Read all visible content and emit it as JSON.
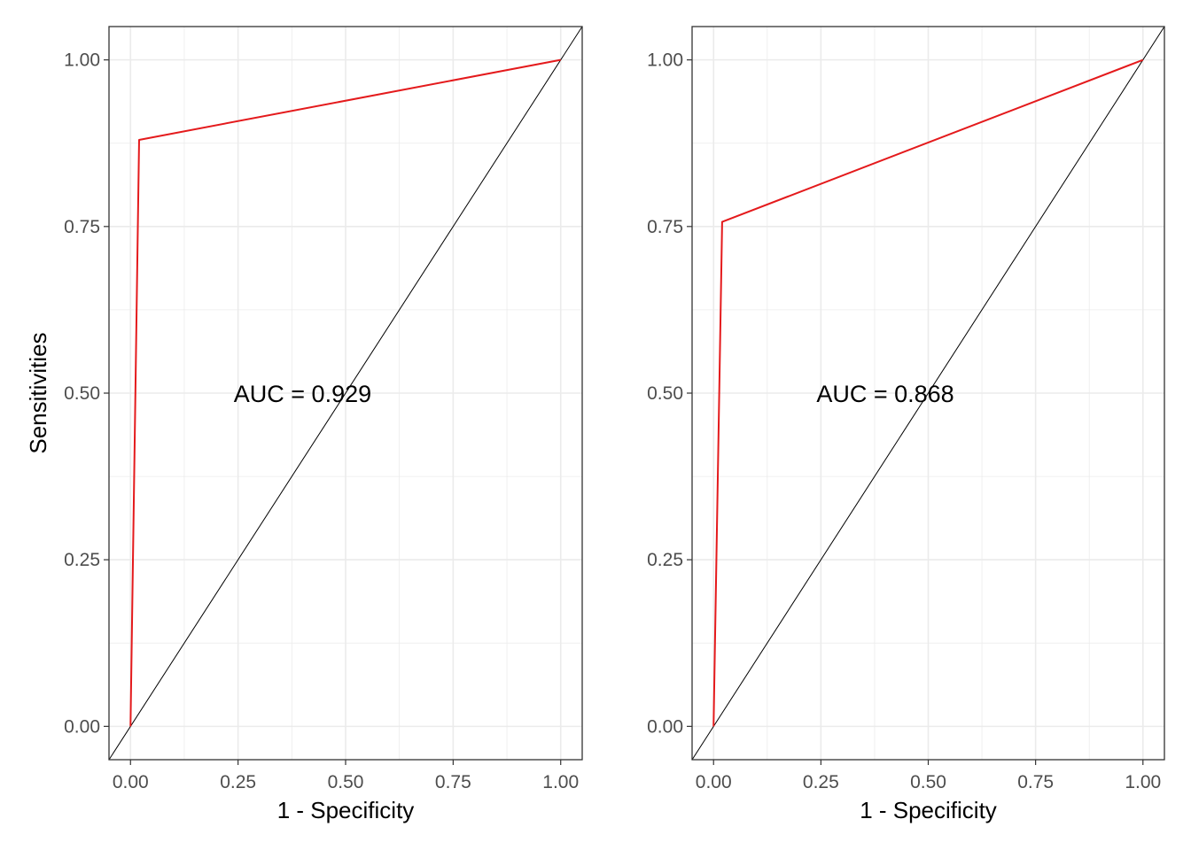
{
  "chart_data": [
    {
      "type": "line",
      "xlabel": "1 - Specificity",
      "ylabel": "Sensitivities",
      "xlim": [
        -0.05,
        1.05
      ],
      "ylim": [
        -0.05,
        1.05
      ],
      "x_ticks": [
        0,
        0.25,
        0.5,
        0.75,
        1
      ],
      "x_tick_labels": [
        "0.00",
        "0.25",
        "0.50",
        "0.75",
        "1.00"
      ],
      "y_ticks": [
        0,
        0.25,
        0.5,
        0.75,
        1
      ],
      "y_tick_labels": [
        "0.00",
        "0.25",
        "0.50",
        "0.75",
        "1.00"
      ],
      "grid": true,
      "series": [
        {
          "color": "#e41a1c",
          "x": [
            0,
            0.02,
            1
          ],
          "y": [
            0,
            0.88,
            1
          ]
        }
      ],
      "reference_line": {
        "x": [
          -0.05,
          1.05
        ],
        "y": [
          -0.05,
          1.05
        ],
        "color": "#000000"
      },
      "annotation": {
        "text": "AUC =  0.929",
        "x": 0.4,
        "y": 0.5
      }
    },
    {
      "type": "line",
      "xlabel": "1 - Specificity",
      "ylabel": "",
      "xlim": [
        -0.05,
        1.05
      ],
      "ylim": [
        -0.05,
        1.05
      ],
      "x_ticks": [
        0,
        0.25,
        0.5,
        0.75,
        1
      ],
      "x_tick_labels": [
        "0.00",
        "0.25",
        "0.50",
        "0.75",
        "1.00"
      ],
      "y_ticks": [
        0,
        0.25,
        0.5,
        0.75,
        1
      ],
      "y_tick_labels": [
        "0.00",
        "0.25",
        "0.50",
        "0.75",
        "1.00"
      ],
      "grid": true,
      "series": [
        {
          "color": "#e41a1c",
          "x": [
            0,
            0.02,
            1
          ],
          "y": [
            0,
            0.757,
            1
          ]
        }
      ],
      "reference_line": {
        "x": [
          -0.05,
          1.05
        ],
        "y": [
          -0.05,
          1.05
        ],
        "color": "#000000"
      },
      "annotation": {
        "text": "AUC =  0.868",
        "x": 0.4,
        "y": 0.5
      }
    }
  ]
}
